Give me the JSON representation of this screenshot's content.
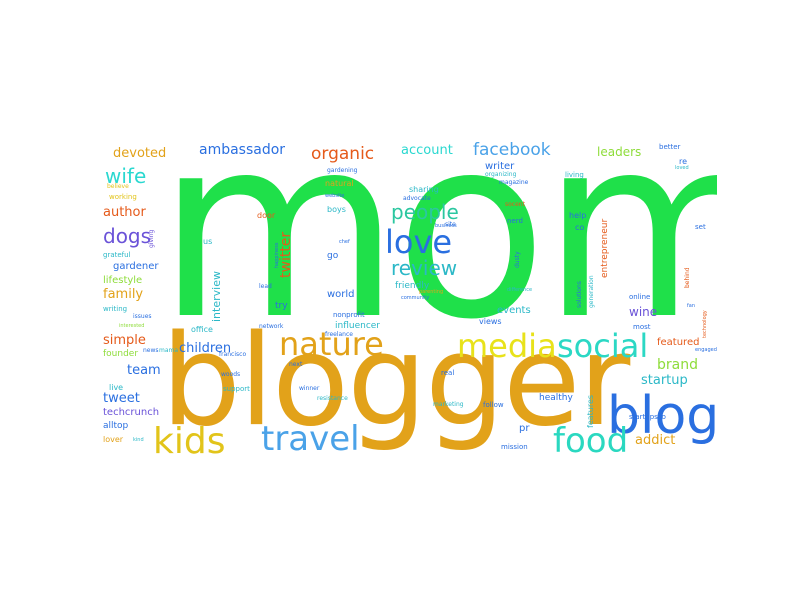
{
  "word_cloud": {
    "colors": {
      "green": "#1fe04a",
      "orange": "#e2a21a",
      "blue": "#2a6fe0",
      "cyan": "#2ad8d0",
      "teal": "#2bc7c0",
      "yellow": "#e8e21a",
      "light_green": "#8edc3a",
      "purple": "#6a52d8",
      "red_orange": "#e55a1a",
      "sky": "#4aa2e8",
      "gold": "#d9b51e"
    },
    "words": {
      "mom": "mom",
      "blogger": "blogger",
      "blog": "blog",
      "kids": "kids",
      "travel": "travel",
      "food": "food",
      "media": "media",
      "social": "social",
      "nature": "nature",
      "love": "love",
      "people": "people",
      "review": "review",
      "facebook": "facebook",
      "organic": "organic",
      "account": "account",
      "ambassador": "ambassador",
      "devoted": "devoted",
      "wife": "wife",
      "author": "author",
      "dogs": "dogs",
      "family": "family",
      "gardener": "gardener",
      "lifestyle": "lifestyle",
      "simple": "simple",
      "children": "children",
      "team": "team",
      "tweet": "tweet",
      "techcrunch": "techcrunch",
      "twitter": "twitter",
      "interview": "interview",
      "brand": "brand",
      "startup": "startup",
      "addict": "addict",
      "leaders": "leaders",
      "featured": "featured",
      "wine": "wine",
      "world": "world",
      "influencer": "influencer",
      "friendly": "friendly",
      "events": "events",
      "writer": "writer",
      "living": "living",
      "better": "better",
      "working": "working",
      "grateful": "grateful",
      "writing": "writing",
      "founder": "founder",
      "live": "live",
      "alltop": "alltop",
      "lover": "lover",
      "healthy": "healthy",
      "pr": "pr",
      "features": "features",
      "startupsco": "startupsco",
      "mission": "mission",
      "follow": "follow",
      "marketing": "marketing",
      "winner": "winner",
      "support": "support",
      "woods": "woods",
      "office": "office",
      "network": "network",
      "nonprofit": "nonprofit",
      "freelance": "freelance",
      "real": "real",
      "views": "views",
      "boys": "boys",
      "natural": "natural",
      "sharing": "sharing",
      "gardening": "gardening",
      "advocate": "advocate",
      "magazine": "magazine",
      "organizing": "organizing",
      "socent": "socent",
      "help": "help",
      "nerd": "nerd",
      "solutions": "solutions",
      "generation": "generation",
      "entrepreneur": "entrepreneur",
      "online": "online",
      "most": "most",
      "door": "door",
      "us": "us",
      "go": "go",
      "lead": "lead",
      "try": "try",
      "next": "next",
      "francisco": "francisco",
      "news": "news",
      "issues": "issues",
      "giving": "giving",
      "believe": "believe",
      "interested": "interested",
      "mama": "mama",
      "resistance": "resistance",
      "community": "community",
      "difference": "difference",
      "parenting": "parenting",
      "business": "business",
      "site": "site",
      "chef": "chef",
      "dusty": "dusty",
      "co": "co",
      "set": "set",
      "behind": "behind",
      "fan": "fan",
      "technology": "technology",
      "loved": "loved",
      "re": "re",
      "engaged": "engaged",
      "website": "website",
      "happiness": "happiness",
      "kind": "kind",
      "dogs2": "dogs"
    }
  }
}
